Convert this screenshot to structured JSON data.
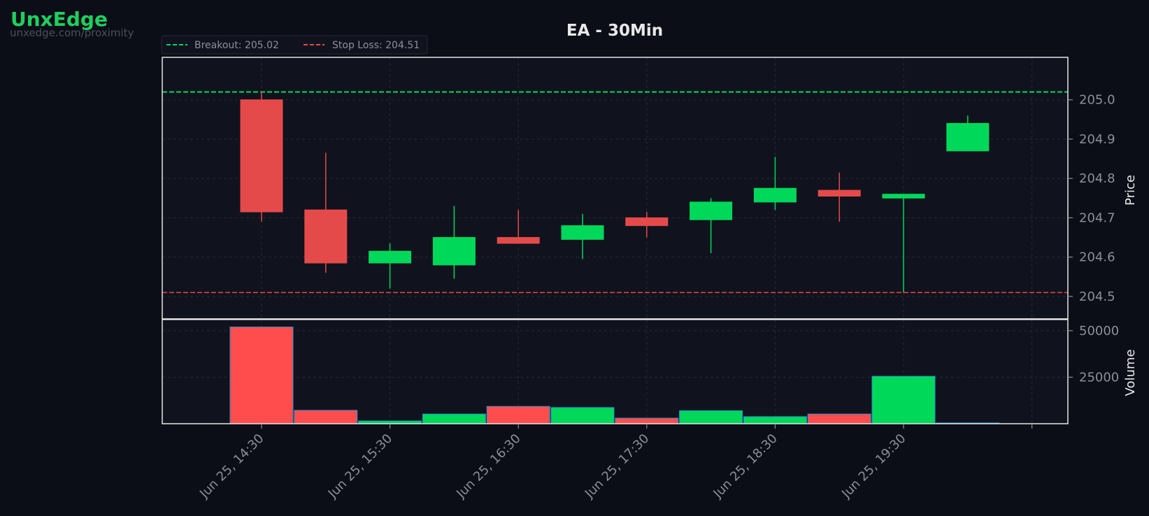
{
  "brand": {
    "name": "UnxEdge",
    "url": "unxedge.com/proximity"
  },
  "colors": {
    "background": "#0b0e17",
    "panel": "#10131e",
    "brand": "#1fcf5f",
    "up": "#00d85a",
    "down": "#e54a4a",
    "volume_down": "#ff4d4d",
    "volume_edge": "#2a8fd0",
    "breakout_line": "#00d85a",
    "stoploss_line": "#e54a4a",
    "text_muted": "#8a8f99",
    "title": "#e8e8e8",
    "grid": "#262a36"
  },
  "chart_data": {
    "type": "candlestick",
    "title": "EA - 30Min",
    "ylabel_price": "Price",
    "ylabel_volume": "Volume",
    "price_ylim": [
      204.443,
      205.108
    ],
    "price_ticks": [
      204.5,
      204.6,
      204.7,
      204.8,
      204.9,
      205.0
    ],
    "price_tick_labels": [
      "204.5",
      "204.6",
      "204.7",
      "204.8",
      "204.9",
      "205.0"
    ],
    "volume_ylim": [
      0,
      56000
    ],
    "volume_ticks": [
      25000,
      50000
    ],
    "volume_tick_labels": [
      "25000",
      "50000"
    ],
    "x_tick_labels": [
      "Jun 25, 14:30",
      "Jun 25, 15:30",
      "Jun 25, 16:30",
      "Jun 25, 17:30",
      "Jun 25, 18:30",
      "Jun 25, 19:30"
    ],
    "grid": true,
    "legend": {
      "placement": "top-left",
      "entries": [
        {
          "label": "Breakout: 205.02",
          "color": "#00d85a",
          "style": "dashed"
        },
        {
          "label": "Stop Loss: 204.51",
          "color": "#e54a4a",
          "style": "dashed"
        }
      ]
    },
    "levels": {
      "breakout": 205.02,
      "stop_loss": 204.51
    },
    "candles": [
      {
        "time": "14:30",
        "open": 205.0,
        "high": 205.02,
        "low": 204.69,
        "close": 204.715,
        "volume": 52000
      },
      {
        "time": "15:00",
        "open": 204.72,
        "high": 204.865,
        "low": 204.56,
        "close": 204.585,
        "volume": 7200
      },
      {
        "time": "15:30",
        "open": 204.585,
        "high": 204.635,
        "low": 204.52,
        "close": 204.615,
        "volume": 1500
      },
      {
        "time": "16:00",
        "open": 204.58,
        "high": 204.73,
        "low": 204.545,
        "close": 204.65,
        "volume": 5200
      },
      {
        "time": "16:30",
        "open": 204.65,
        "high": 204.72,
        "low": 204.635,
        "close": 204.635,
        "volume": 9300
      },
      {
        "time": "17:00",
        "open": 204.645,
        "high": 204.71,
        "low": 204.595,
        "close": 204.68,
        "volume": 8700
      },
      {
        "time": "17:30",
        "open": 204.7,
        "high": 204.715,
        "low": 204.65,
        "close": 204.68,
        "volume": 3000
      },
      {
        "time": "18:00",
        "open": 204.695,
        "high": 204.75,
        "low": 204.61,
        "close": 204.74,
        "volume": 7000
      },
      {
        "time": "18:30",
        "open": 204.74,
        "high": 204.855,
        "low": 204.72,
        "close": 204.775,
        "volume": 3800
      },
      {
        "time": "19:00",
        "open": 204.77,
        "high": 204.815,
        "low": 204.69,
        "close": 204.755,
        "volume": 5200
      },
      {
        "time": "19:30",
        "open": 204.75,
        "high": 204.76,
        "low": 204.51,
        "close": 204.76,
        "volume": 25500
      },
      {
        "time": "20:00",
        "open": 204.87,
        "high": 204.96,
        "low": 204.87,
        "close": 204.94,
        "volume": 400
      }
    ]
  }
}
